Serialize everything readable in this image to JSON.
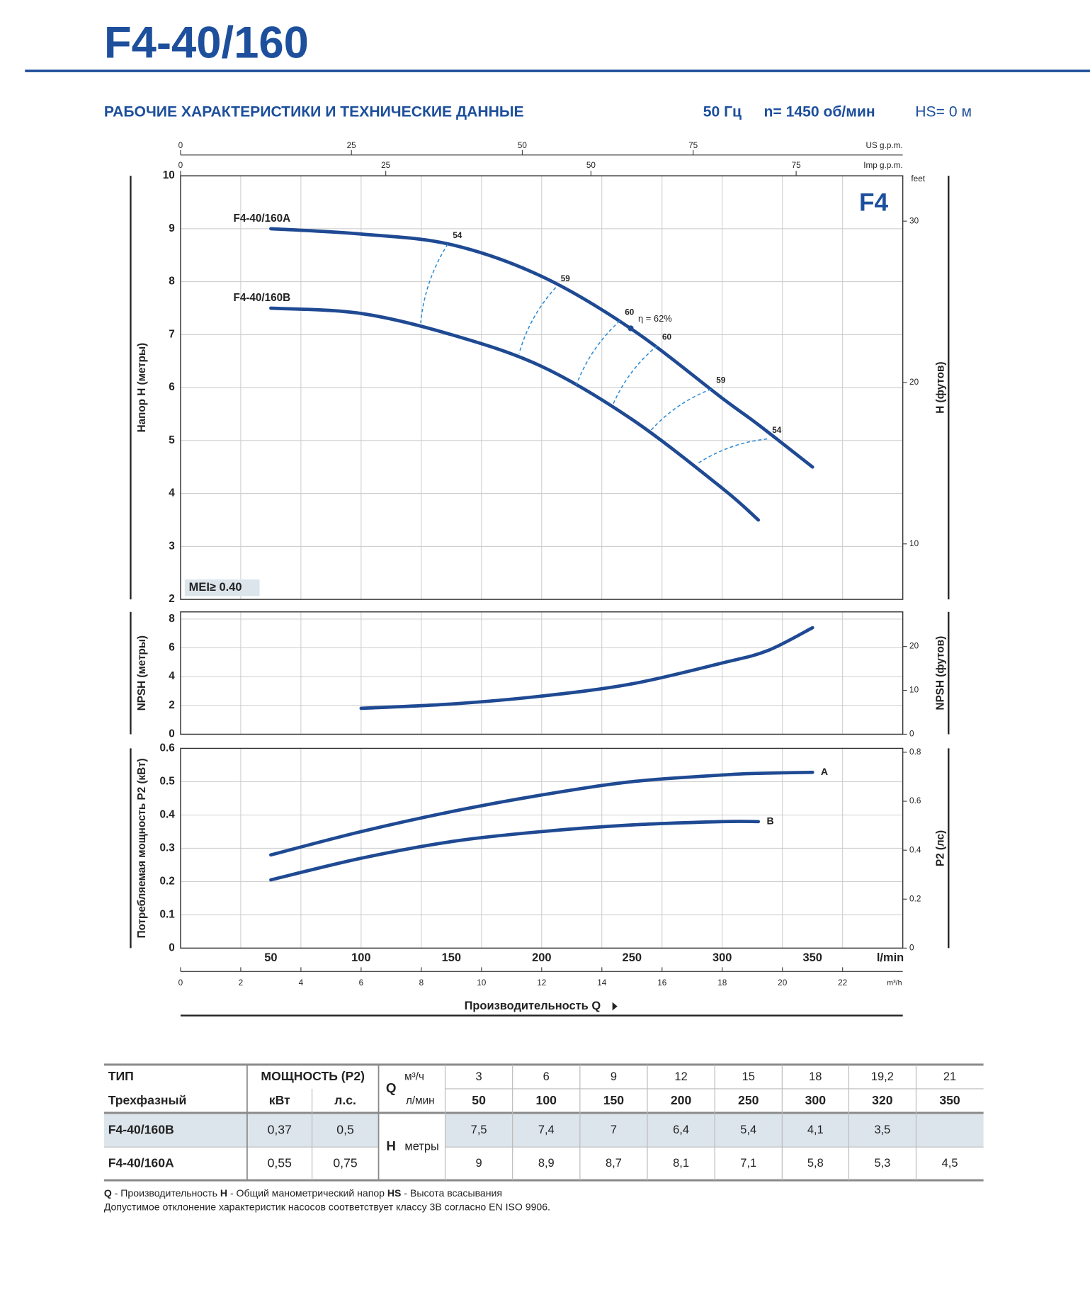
{
  "header": {
    "title": "F4-40/160",
    "subtitle": "РАБОЧИЕ ХАРАКТЕРИСТИКИ И ТЕХНИЧЕСКИЕ ДАННЫЕ",
    "frequency": "50 Гц",
    "speed": "n= 1450 об/мин",
    "suction": "HS= 0 м"
  },
  "chart_data": [
    {
      "type": "line",
      "ylabel": "Напор H (метры)",
      "y2label": "H (футов)",
      "y2unit": "feet",
      "badge": "F4",
      "mei": "MEI≥ 0.40",
      "xlim": [
        0,
        400
      ],
      "ylim": [
        2,
        10
      ],
      "yticks": [
        2,
        3,
        4,
        5,
        6,
        7,
        8,
        9,
        10
      ],
      "y2lim": [
        6.56,
        32.81
      ],
      "y2ticks": [
        10,
        20,
        30
      ],
      "grid": true,
      "top_axes": [
        {
          "label": "US g.p.m.",
          "xlim": [
            0,
            105.67
          ],
          "xticks": [
            0,
            25,
            50,
            75
          ]
        },
        {
          "label": "Imp g.p.m.",
          "xlim": [
            0,
            87.99
          ],
          "xticks": [
            0,
            25,
            50,
            75
          ]
        }
      ],
      "x": [
        50,
        100,
        150,
        200,
        250,
        300,
        320,
        350
      ],
      "series": [
        {
          "name": "F4-40/160A",
          "color": "#1f4a93",
          "values": [
            9,
            8.9,
            8.7,
            8.1,
            7.1,
            5.8,
            5.3,
            4.5
          ]
        },
        {
          "name": "F4-40/160B",
          "color": "#1f4a93",
          "values": [
            7.5,
            7.4,
            7,
            6.4,
            5.4,
            4.1,
            3.5,
            null
          ]
        }
      ],
      "efficiency_color": "#2a8ad4",
      "efficiency": [
        {
          "label": "54",
          "points": [
            [
              148,
              8.71
            ],
            [
              133,
              7.22
            ]
          ]
        },
        {
          "label": "59",
          "points": [
            [
              207.8,
              7.89
            ],
            [
              187.5,
              6.64
            ]
          ]
        },
        {
          "label": "60",
          "points": [
            [
              243.3,
              7.26
            ],
            [
              219.2,
              6.05
            ]
          ]
        },
        {
          "label": "60",
          "points": [
            [
              264,
              6.79
            ],
            [
              239.5,
              5.68
            ]
          ]
        },
        {
          "label": "59",
          "points": [
            [
              293.9,
              5.97
            ],
            [
              260.4,
              5.19
            ]
          ]
        },
        {
          "label": "54",
          "points": [
            [
              324.9,
              5.03
            ],
            [
              286.1,
              4.56
            ]
          ]
        }
      ],
      "best": {
        "label": "η = 62%",
        "x": 249.3,
        "y": 7.12
      }
    },
    {
      "type": "line",
      "ylabel": "NPSH (метры)",
      "y2label": "NPSH (футов)",
      "xlim": [
        0,
        400
      ],
      "ylim": [
        0,
        8.5
      ],
      "yticks": [
        0,
        2,
        4,
        6,
        8
      ],
      "y2lim": [
        0,
        27.89
      ],
      "y2ticks": [
        0,
        10,
        20
      ],
      "grid": true,
      "color": "#1f4a93",
      "x": [
        100,
        150,
        200,
        250,
        300,
        325,
        350
      ],
      "values": [
        1.8,
        2.1,
        2.65,
        3.5,
        4.95,
        5.8,
        7.4
      ]
    },
    {
      "type": "line",
      "ylabel": "Потребляемая мощность P2 (кВт)",
      "y2label": "P2 (лс)",
      "xlim": [
        0,
        400
      ],
      "ylim": [
        0,
        0.6
      ],
      "yticks": [
        0,
        0.1,
        0.2,
        0.3,
        0.4,
        0.5,
        0.6
      ],
      "y2lim": [
        0,
        0.816
      ],
      "y2ticks": [
        0,
        0.2,
        0.4,
        0.6,
        0.8
      ],
      "grid": true,
      "xticks": [
        50,
        100,
        150,
        200,
        250,
        300,
        350
      ],
      "xunit": "l/min",
      "xlabel": "Производительность Q",
      "x2": {
        "label": "m³/h",
        "xlim": [
          0,
          24
        ],
        "xticks": [
          0,
          2,
          4,
          6,
          8,
          10,
          12,
          14,
          16,
          18,
          20,
          22
        ]
      },
      "x": [
        50,
        100,
        150,
        200,
        250,
        300,
        320,
        350
      ],
      "series": [
        {
          "name": "A",
          "color": "#1f4a93",
          "values": [
            0.28,
            0.35,
            0.41,
            0.46,
            0.5,
            0.52,
            0.525,
            0.528
          ]
        },
        {
          "name": "B",
          "color": "#1f4a93",
          "values": [
            0.205,
            0.27,
            0.32,
            0.35,
            0.37,
            0.38,
            0.38,
            null
          ]
        }
      ]
    }
  ],
  "table": {
    "type_header": "ТИП",
    "type_sub": "Трехфазный",
    "power_header": "МОЩНОСТЬ (P2)",
    "power_units": [
      "кВт",
      "л.с."
    ],
    "q_label": "Q",
    "q_units": [
      "м³/ч",
      "л/мин"
    ],
    "q_m3h": [
      "3",
      "6",
      "9",
      "12",
      "15",
      "18",
      "19,2",
      "21"
    ],
    "q_lmin": [
      "50",
      "100",
      "150",
      "200",
      "250",
      "300",
      "320",
      "350"
    ],
    "h_label": "H",
    "h_unit": "метры",
    "rows": [
      {
        "name": "F4-40/160B",
        "kw": "0,37",
        "hp": "0,5",
        "values": [
          "7,5",
          "7,4",
          "7",
          "6,4",
          "5,4",
          "4,1",
          "3,5",
          null
        ]
      },
      {
        "name": "F4-40/160A",
        "kw": "0,55",
        "hp": "0,75",
        "values": [
          "9",
          "8,9",
          "8,7",
          "8,1",
          "7,1",
          "5,8",
          "5,3",
          "4,5"
        ]
      }
    ]
  },
  "notes": {
    "legend": [
      {
        "key": "Q",
        "text": " - Производительность  "
      },
      {
        "key": "H",
        "text": " - Общий манометрический напор  "
      },
      {
        "key": "HS",
        "text": " - Высота всасывания"
      }
    ],
    "tolerance": "Допустимое отклонение характеристик насосов соответствует классу 3B согласно EN ISO 9906."
  }
}
